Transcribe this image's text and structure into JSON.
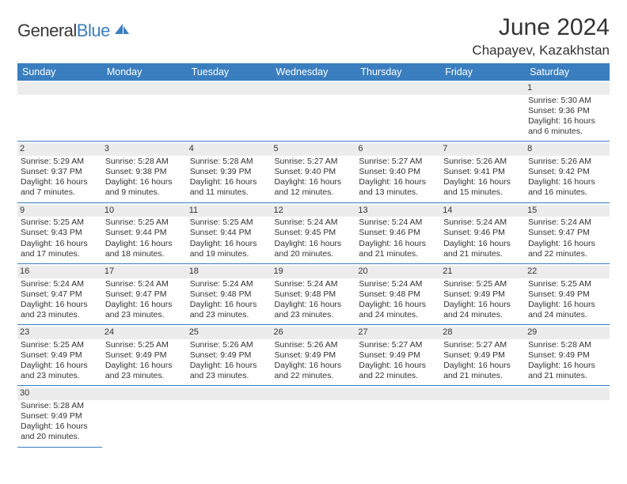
{
  "logo": {
    "main": "General",
    "sub": "Blue"
  },
  "title": "June 2024",
  "location": "Chapayev, Kazakhstan",
  "colors": {
    "accent": "#3a7ebf",
    "header_bg": "#3a7ebf",
    "daynum_bg": "#ececec",
    "text": "#333333"
  },
  "weekdays": [
    "Sunday",
    "Monday",
    "Tuesday",
    "Wednesday",
    "Thursday",
    "Friday",
    "Saturday"
  ],
  "weeks": [
    [
      null,
      null,
      null,
      null,
      null,
      null,
      {
        "n": "1",
        "sr": "Sunrise: 5:30 AM",
        "ss": "Sunset: 9:36 PM",
        "d1": "Daylight: 16 hours",
        "d2": "and 6 minutes."
      }
    ],
    [
      {
        "n": "2",
        "sr": "Sunrise: 5:29 AM",
        "ss": "Sunset: 9:37 PM",
        "d1": "Daylight: 16 hours",
        "d2": "and 7 minutes."
      },
      {
        "n": "3",
        "sr": "Sunrise: 5:28 AM",
        "ss": "Sunset: 9:38 PM",
        "d1": "Daylight: 16 hours",
        "d2": "and 9 minutes."
      },
      {
        "n": "4",
        "sr": "Sunrise: 5:28 AM",
        "ss": "Sunset: 9:39 PM",
        "d1": "Daylight: 16 hours",
        "d2": "and 11 minutes."
      },
      {
        "n": "5",
        "sr": "Sunrise: 5:27 AM",
        "ss": "Sunset: 9:40 PM",
        "d1": "Daylight: 16 hours",
        "d2": "and 12 minutes."
      },
      {
        "n": "6",
        "sr": "Sunrise: 5:27 AM",
        "ss": "Sunset: 9:40 PM",
        "d1": "Daylight: 16 hours",
        "d2": "and 13 minutes."
      },
      {
        "n": "7",
        "sr": "Sunrise: 5:26 AM",
        "ss": "Sunset: 9:41 PM",
        "d1": "Daylight: 16 hours",
        "d2": "and 15 minutes."
      },
      {
        "n": "8",
        "sr": "Sunrise: 5:26 AM",
        "ss": "Sunset: 9:42 PM",
        "d1": "Daylight: 16 hours",
        "d2": "and 16 minutes."
      }
    ],
    [
      {
        "n": "9",
        "sr": "Sunrise: 5:25 AM",
        "ss": "Sunset: 9:43 PM",
        "d1": "Daylight: 16 hours",
        "d2": "and 17 minutes."
      },
      {
        "n": "10",
        "sr": "Sunrise: 5:25 AM",
        "ss": "Sunset: 9:44 PM",
        "d1": "Daylight: 16 hours",
        "d2": "and 18 minutes."
      },
      {
        "n": "11",
        "sr": "Sunrise: 5:25 AM",
        "ss": "Sunset: 9:44 PM",
        "d1": "Daylight: 16 hours",
        "d2": "and 19 minutes."
      },
      {
        "n": "12",
        "sr": "Sunrise: 5:24 AM",
        "ss": "Sunset: 9:45 PM",
        "d1": "Daylight: 16 hours",
        "d2": "and 20 minutes."
      },
      {
        "n": "13",
        "sr": "Sunrise: 5:24 AM",
        "ss": "Sunset: 9:46 PM",
        "d1": "Daylight: 16 hours",
        "d2": "and 21 minutes."
      },
      {
        "n": "14",
        "sr": "Sunrise: 5:24 AM",
        "ss": "Sunset: 9:46 PM",
        "d1": "Daylight: 16 hours",
        "d2": "and 21 minutes."
      },
      {
        "n": "15",
        "sr": "Sunrise: 5:24 AM",
        "ss": "Sunset: 9:47 PM",
        "d1": "Daylight: 16 hours",
        "d2": "and 22 minutes."
      }
    ],
    [
      {
        "n": "16",
        "sr": "Sunrise: 5:24 AM",
        "ss": "Sunset: 9:47 PM",
        "d1": "Daylight: 16 hours",
        "d2": "and 23 minutes."
      },
      {
        "n": "17",
        "sr": "Sunrise: 5:24 AM",
        "ss": "Sunset: 9:47 PM",
        "d1": "Daylight: 16 hours",
        "d2": "and 23 minutes."
      },
      {
        "n": "18",
        "sr": "Sunrise: 5:24 AM",
        "ss": "Sunset: 9:48 PM",
        "d1": "Daylight: 16 hours",
        "d2": "and 23 minutes."
      },
      {
        "n": "19",
        "sr": "Sunrise: 5:24 AM",
        "ss": "Sunset: 9:48 PM",
        "d1": "Daylight: 16 hours",
        "d2": "and 23 minutes."
      },
      {
        "n": "20",
        "sr": "Sunrise: 5:24 AM",
        "ss": "Sunset: 9:48 PM",
        "d1": "Daylight: 16 hours",
        "d2": "and 24 minutes."
      },
      {
        "n": "21",
        "sr": "Sunrise: 5:25 AM",
        "ss": "Sunset: 9:49 PM",
        "d1": "Daylight: 16 hours",
        "d2": "and 24 minutes."
      },
      {
        "n": "22",
        "sr": "Sunrise: 5:25 AM",
        "ss": "Sunset: 9:49 PM",
        "d1": "Daylight: 16 hours",
        "d2": "and 24 minutes."
      }
    ],
    [
      {
        "n": "23",
        "sr": "Sunrise: 5:25 AM",
        "ss": "Sunset: 9:49 PM",
        "d1": "Daylight: 16 hours",
        "d2": "and 23 minutes."
      },
      {
        "n": "24",
        "sr": "Sunrise: 5:25 AM",
        "ss": "Sunset: 9:49 PM",
        "d1": "Daylight: 16 hours",
        "d2": "and 23 minutes."
      },
      {
        "n": "25",
        "sr": "Sunrise: 5:26 AM",
        "ss": "Sunset: 9:49 PM",
        "d1": "Daylight: 16 hours",
        "d2": "and 23 minutes."
      },
      {
        "n": "26",
        "sr": "Sunrise: 5:26 AM",
        "ss": "Sunset: 9:49 PM",
        "d1": "Daylight: 16 hours",
        "d2": "and 22 minutes."
      },
      {
        "n": "27",
        "sr": "Sunrise: 5:27 AM",
        "ss": "Sunset: 9:49 PM",
        "d1": "Daylight: 16 hours",
        "d2": "and 22 minutes."
      },
      {
        "n": "28",
        "sr": "Sunrise: 5:27 AM",
        "ss": "Sunset: 9:49 PM",
        "d1": "Daylight: 16 hours",
        "d2": "and 21 minutes."
      },
      {
        "n": "29",
        "sr": "Sunrise: 5:28 AM",
        "ss": "Sunset: 9:49 PM",
        "d1": "Daylight: 16 hours",
        "d2": "and 21 minutes."
      }
    ],
    [
      {
        "n": "30",
        "sr": "Sunrise: 5:28 AM",
        "ss": "Sunset: 9:49 PM",
        "d1": "Daylight: 16 hours",
        "d2": "and 20 minutes."
      },
      null,
      null,
      null,
      null,
      null,
      null
    ]
  ]
}
